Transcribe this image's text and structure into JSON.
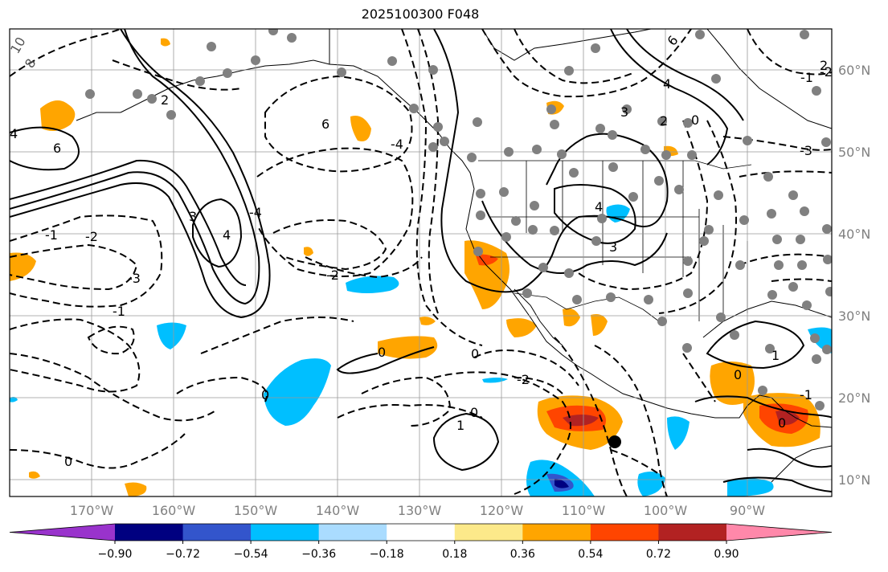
{
  "title": "2025100300 F048",
  "map": {
    "projection": "lat-lon",
    "lon_range": [
      "180°W",
      "80°W"
    ],
    "lat_range": [
      "8°N",
      "65°N"
    ],
    "lon_labels": [
      "170°W",
      "160°W",
      "150°W",
      "140°W",
      "130°W",
      "120°W",
      "110°W",
      "100°W",
      "90°W"
    ],
    "lat_labels": [
      "60°N",
      "50°N",
      "40°N",
      "30°N",
      "20°N",
      "10°N"
    ],
    "grid": true,
    "station_marker_color": "#808080",
    "target_marker_color": "#000000",
    "contour_labels": [
      "10",
      "8",
      "6",
      "4",
      "3",
      "2",
      "1",
      "0",
      "-1",
      "-2",
      "-3",
      "-4",
      "-6"
    ]
  },
  "colorbar": {
    "ticks": [
      "−0.90",
      "−0.72",
      "−0.54",
      "−0.36",
      "−0.18",
      "0.18",
      "0.36",
      "0.54",
      "0.72",
      "0.90"
    ],
    "colors": [
      "#9933cc",
      "#000080",
      "#3355cc",
      "#00bfff",
      "#aadcff",
      "#ffffff",
      "#fce98a",
      "#ffa500",
      "#ff4500",
      "#b22222",
      "#ff88aa"
    ],
    "extend": "both"
  }
}
